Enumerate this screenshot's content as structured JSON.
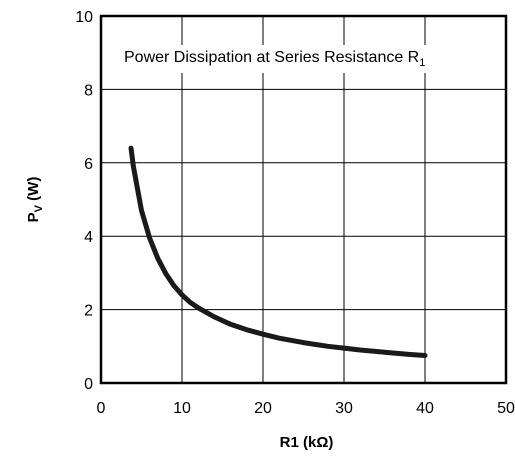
{
  "chart_data": {
    "type": "line",
    "title": "Power Dissipation at Series Resistance R",
    "title_subscript": "1",
    "xlabel": "R1 (kΩ)",
    "ylabel": "P",
    "ylabel_subscript": "V",
    "ylabel_unit": " (W)",
    "xlim": [
      0,
      50
    ],
    "ylim": [
      0,
      10
    ],
    "x_ticks": [
      "0",
      "10",
      "20",
      "30",
      "40",
      "50"
    ],
    "y_ticks": [
      "0",
      "2",
      "4",
      "6",
      "8",
      "10"
    ],
    "grid": true,
    "series": [
      {
        "x": [
          3.7,
          4.0,
          5.0,
          6.0,
          7.0,
          8.0,
          9.0,
          10.0,
          11.0,
          12.0,
          14.0,
          16.0,
          18.0,
          20.0,
          22.0,
          25.0,
          28.0,
          30.0,
          32.0,
          35.0,
          38.0,
          40.0
        ],
        "y": [
          6.4,
          5.9,
          4.7,
          3.95,
          3.4,
          2.98,
          2.65,
          2.4,
          2.2,
          2.05,
          1.8,
          1.6,
          1.45,
          1.33,
          1.22,
          1.1,
          1.0,
          0.95,
          0.9,
          0.84,
          0.78,
          0.75
        ],
        "color": "#1a1a1a"
      }
    ]
  }
}
